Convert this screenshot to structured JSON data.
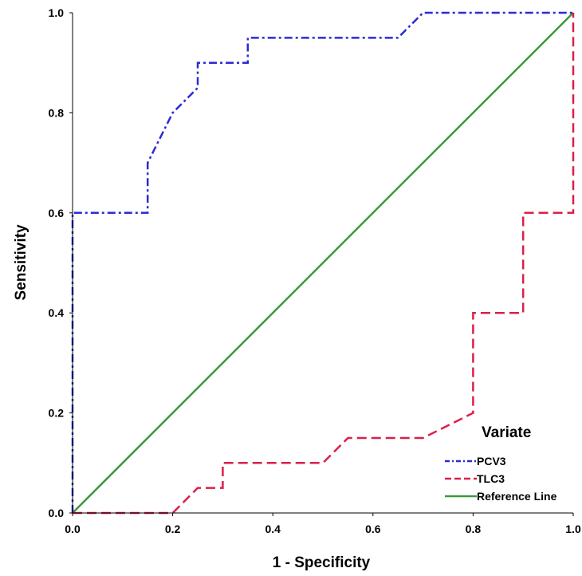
{
  "chart_data": {
    "type": "line",
    "title": "",
    "xlabel": "1 - Specificity",
    "ylabel": "Sensitivity",
    "xlim": [
      0,
      1
    ],
    "ylim": [
      0,
      1
    ],
    "x_ticks": [
      "0.0",
      "0.2",
      "0.4",
      "0.6",
      "0.8",
      "1.0"
    ],
    "y_ticks": [
      "0.0",
      "0.2",
      "0.4",
      "0.6",
      "0.8",
      "1.0"
    ],
    "grid": false,
    "legend": {
      "title": "Variate",
      "position": "bottom-right"
    },
    "series": [
      {
        "name": "PCV3",
        "color": "#2b2bd6",
        "style": "dash-dot",
        "x": [
          0,
          0,
          0.15,
          0.15,
          0.2,
          0.25,
          0.25,
          0.35,
          0.35,
          0.65,
          0.7,
          1.0
        ],
        "y": [
          0,
          0.6,
          0.6,
          0.7,
          0.8,
          0.85,
          0.9,
          0.9,
          0.95,
          0.95,
          1.0,
          1.0
        ]
      },
      {
        "name": "TLC3",
        "color": "#dc1f4a",
        "style": "dashed",
        "x": [
          0,
          0.2,
          0.25,
          0.3,
          0.3,
          0.5,
          0.55,
          0.7,
          0.8,
          0.8,
          0.9,
          0.9,
          1.0,
          1.0
        ],
        "y": [
          0,
          0,
          0.05,
          0.05,
          0.1,
          0.1,
          0.15,
          0.15,
          0.2,
          0.4,
          0.4,
          0.6,
          0.6,
          1.0
        ]
      },
      {
        "name": "Reference Line",
        "color": "#3a9a3a",
        "style": "solid",
        "x": [
          0,
          1
        ],
        "y": [
          0,
          1
        ]
      }
    ]
  }
}
